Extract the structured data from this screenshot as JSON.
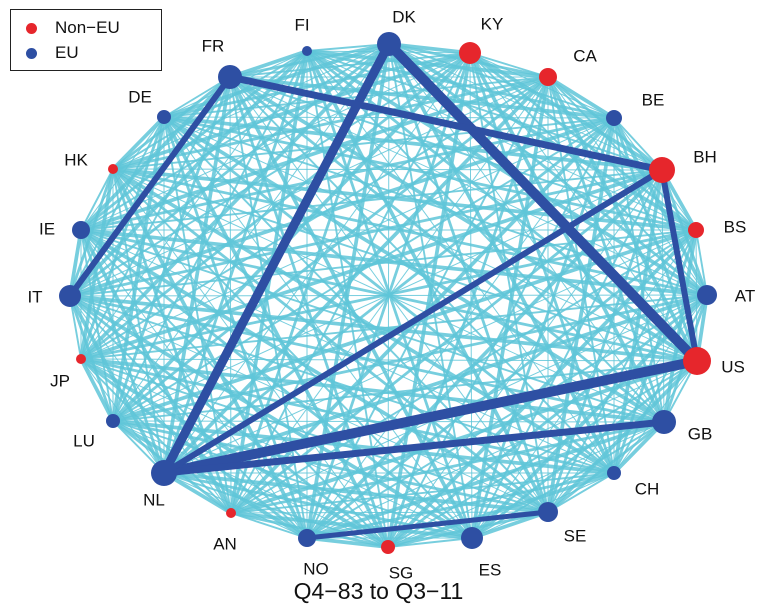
{
  "colors": {
    "eu": "#2e4fa3",
    "non_eu": "#e6262c",
    "light_edge": "#5fc6d8",
    "strong_edge": "#2e4fa3"
  },
  "legend": [
    {
      "label": "Non−EU",
      "group": "non_eu"
    },
    {
      "label": "EU",
      "group": "eu"
    }
  ],
  "caption": "Q4−83 to Q3−11",
  "nodes": [
    {
      "id": "DK",
      "group": "eu"
    },
    {
      "id": "KY",
      "group": "non_eu"
    },
    {
      "id": "CA",
      "group": "non_eu"
    },
    {
      "id": "BE",
      "group": "eu"
    },
    {
      "id": "BH",
      "group": "non_eu"
    },
    {
      "id": "BS",
      "group": "non_eu"
    },
    {
      "id": "AT",
      "group": "eu"
    },
    {
      "id": "US",
      "group": "non_eu"
    },
    {
      "id": "GB",
      "group": "eu"
    },
    {
      "id": "CH",
      "group": "eu"
    },
    {
      "id": "SE",
      "group": "eu"
    },
    {
      "id": "ES",
      "group": "eu"
    },
    {
      "id": "SG",
      "group": "non_eu"
    },
    {
      "id": "NO",
      "group": "eu"
    },
    {
      "id": "AN",
      "group": "non_eu"
    },
    {
      "id": "NL",
      "group": "eu"
    },
    {
      "id": "LU",
      "group": "eu"
    },
    {
      "id": "JP",
      "group": "non_eu"
    },
    {
      "id": "IT",
      "group": "eu"
    },
    {
      "id": "IE",
      "group": "eu"
    },
    {
      "id": "HK",
      "group": "non_eu"
    },
    {
      "id": "DE",
      "group": "eu"
    },
    {
      "id": "FR",
      "group": "eu"
    },
    {
      "id": "FI",
      "group": "eu"
    }
  ],
  "strong_edges": [
    [
      "DK",
      "US"
    ],
    [
      "DK",
      "NL"
    ],
    [
      "NL",
      "US"
    ],
    [
      "NL",
      "GB"
    ],
    [
      "NL",
      "BH"
    ],
    [
      "FR",
      "BH"
    ],
    [
      "FR",
      "IT"
    ],
    [
      "BH",
      "US"
    ],
    [
      "NO",
      "SE"
    ]
  ]
}
